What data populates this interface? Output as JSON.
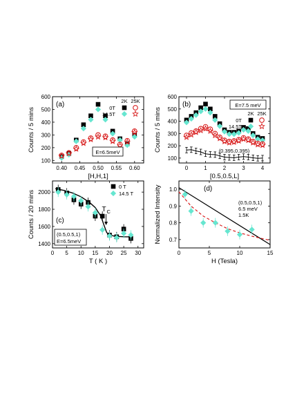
{
  "colors": {
    "black": "#000000",
    "cyan": "#66e6d0",
    "red": "#d81e1e"
  },
  "chart_data": [
    {
      "panel": "a",
      "type": "scatter",
      "panel_label": "(a)",
      "xlabel": "[H,H,1]",
      "ylabel": "Counts / 5 mins",
      "xlim": [
        0.375,
        0.625
      ],
      "ylim": [
        80,
        600
      ],
      "xticks": [
        0.4,
        0.45,
        0.5,
        0.55,
        0.6
      ],
      "xtick_labels": [
        "0.40",
        "0.45",
        "0.50",
        "0.55",
        "0.60"
      ],
      "yticks": [
        100,
        200,
        300,
        400,
        500,
        600
      ],
      "annotations": [
        "E=6.5meV"
      ],
      "legend_header": [
        "2K",
        "25K"
      ],
      "legend_rows": [
        "0T",
        "14.5T"
      ],
      "x": [
        0.4,
        0.42,
        0.44,
        0.46,
        0.48,
        0.5,
        0.52,
        0.54,
        0.56,
        0.58,
        0.6
      ],
      "series": [
        {
          "name": "0T 2K",
          "marker": "square",
          "color": "#000000",
          "values": [
            130,
            155,
            260,
            380,
            450,
            540,
            450,
            330,
            270,
            230,
            300
          ]
        },
        {
          "name": "14.5T 2K",
          "marker": "diamond",
          "color": "#66e6d0",
          "values": [
            120,
            145,
            250,
            350,
            420,
            500,
            420,
            310,
            260,
            220,
            285
          ]
        },
        {
          "name": "0T 25K",
          "marker": "circle",
          "color": "#d81e1e",
          "values": [
            140,
            160,
            200,
            245,
            275,
            300,
            290,
            260,
            225,
            255,
            330
          ]
        },
        {
          "name": "14.5T 25K",
          "marker": "star",
          "color": "#d81e1e",
          "values": [
            135,
            155,
            190,
            235,
            265,
            285,
            280,
            250,
            215,
            245,
            320
          ]
        }
      ]
    },
    {
      "panel": "b",
      "type": "scatter",
      "panel_label": "(b)",
      "xlabel": "[0.5,0.5,L]",
      "ylabel": "Counts / 5 mins",
      "xlim": [
        -0.4,
        4.4
      ],
      "ylim": [
        60,
        600
      ],
      "xticks": [
        0,
        1,
        2,
        3,
        4
      ],
      "yticks": [
        100,
        200,
        300,
        400,
        500,
        600
      ],
      "annotations": [
        "E=7.5 meV",
        "(0.395,0.395)"
      ],
      "legend_header": [
        "2K",
        "25K"
      ],
      "legend_rows": [
        "0T",
        "14.5T"
      ],
      "x": [
        0,
        0.25,
        0.5,
        0.75,
        1.0,
        1.25,
        1.5,
        1.75,
        2.0,
        2.25,
        2.5,
        2.75,
        3.0,
        3.25,
        3.5,
        3.75,
        4.0
      ],
      "series": [
        {
          "name": "0T 2K",
          "marker": "square",
          "color": "#000000",
          "values": [
            410,
            440,
            470,
            510,
            540,
            500,
            440,
            380,
            330,
            310,
            310,
            320,
            350,
            340,
            300,
            270,
            260
          ]
        },
        {
          "name": "14.5T 2K",
          "marker": "diamond",
          "color": "#66e6d0",
          "values": [
            390,
            420,
            450,
            480,
            500,
            470,
            410,
            360,
            315,
            295,
            295,
            305,
            330,
            320,
            285,
            255,
            245
          ]
        },
        {
          "name": "0T 25K",
          "marker": "circle",
          "color": "#d81e1e",
          "values": [
            285,
            305,
            320,
            340,
            355,
            335,
            300,
            270,
            245,
            235,
            240,
            250,
            265,
            255,
            235,
            220,
            215
          ]
        },
        {
          "name": "14.5T 25K",
          "marker": "star",
          "color": "#d81e1e",
          "values": [
            270,
            290,
            310,
            325,
            340,
            320,
            285,
            260,
            235,
            225,
            230,
            240,
            255,
            245,
            225,
            210,
            205
          ]
        },
        {
          "name": "(0.395,0.395)",
          "marker": "errorbar-line",
          "color": "#000000",
          "values": [
            165,
            168,
            158,
            150,
            135,
            130,
            128,
            118,
            108,
            105,
            103,
            108,
            112,
            108,
            102,
            98,
            100
          ]
        }
      ]
    },
    {
      "panel": "c",
      "type": "scatter",
      "panel_label": "(c)",
      "xlabel": "T ( K )",
      "ylabel": "Counts / 20 mins",
      "xlim": [
        0,
        32
      ],
      "ylim": [
        1350,
        2130
      ],
      "xticks": [
        0,
        5,
        10,
        15,
        20,
        25,
        30
      ],
      "yticks": [
        1400,
        1600,
        1800,
        2000
      ],
      "annotations": [
        "(0.5,0.5,1)",
        "E=6.5meV",
        "T",
        "C"
      ],
      "legend_rows": [
        "0 T",
        "14.5 T"
      ],
      "x": [
        2,
        5,
        7.5,
        10,
        12.5,
        15,
        17.5,
        20,
        22.5,
        25,
        27.5
      ],
      "series": [
        {
          "name": "0 T",
          "marker": "square",
          "color": "#000000",
          "values": [
            2030,
            1990,
            1910,
            1860,
            1880,
            1720,
            1720,
            1500,
            1480,
            1570,
            1460
          ]
        },
        {
          "name": "14.5 T",
          "marker": "diamond",
          "color": "#66e6d0",
          "values": [
            2000,
            1970,
            1950,
            1900,
            1830,
            1760,
            1560,
            1490,
            1470,
            1520,
            1500
          ]
        }
      ],
      "fit_curve": {
        "x": [
          1,
          4,
          7,
          10,
          13,
          15,
          17,
          18,
          19,
          20,
          22,
          25,
          28
        ],
        "y": [
          2040,
          2020,
          1990,
          1945,
          1880,
          1820,
          1720,
          1620,
          1530,
          1500,
          1485,
          1480,
          1478
        ]
      }
    },
    {
      "panel": "d",
      "type": "line",
      "panel_label": "(d)",
      "xlabel": "H (Tesla)",
      "ylabel": "Normalized Intensity",
      "xlim": [
        0,
        15
      ],
      "ylim": [
        0.65,
        1.05
      ],
      "xticks": [
        0,
        5,
        10,
        15
      ],
      "yticks": [
        0.7,
        0.8,
        0.9,
        1.0
      ],
      "ytick_labels": [
        "0.7",
        "0.8",
        "0.9",
        "1.0"
      ],
      "annotations": [
        "(0.5,0.5,1)",
        "6.5 meV",
        "1.5K"
      ],
      "x": [
        1,
        2,
        4,
        6,
        8,
        10,
        12
      ],
      "series": [
        {
          "name": "data",
          "marker": "diamond",
          "color": "#66e6d0",
          "values": [
            0.97,
            0.87,
            0.8,
            0.8,
            0.75,
            0.73,
            0.76
          ]
        }
      ],
      "lines": [
        {
          "style": "solid",
          "color": "#000000",
          "x": [
            0,
            15
          ],
          "y": [
            1.01,
            0.67
          ]
        },
        {
          "style": "dashed",
          "color": "#d81e1e",
          "x": [
            0,
            2,
            4,
            6,
            8,
            10,
            12,
            15
          ],
          "y": [
            0.985,
            0.9,
            0.84,
            0.8,
            0.765,
            0.74,
            0.72,
            0.695
          ]
        }
      ]
    }
  ]
}
